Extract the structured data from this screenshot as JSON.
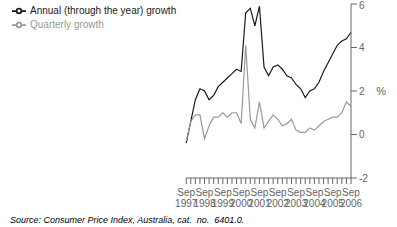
{
  "chart_data": {
    "type": "line",
    "ylabel": "%",
    "source": "Source: Consumer Price Index, Australia, cat.  no.  6401.0.",
    "categories": [
      "Sep\n1997",
      null,
      null,
      null,
      "Sep\n1998",
      null,
      null,
      null,
      "Sep\n1999",
      null,
      null,
      null,
      "Sep\n2000",
      null,
      null,
      null,
      "Sep\n2001",
      null,
      null,
      null,
      "Sep\n2002",
      null,
      null,
      null,
      "Sep\n2003",
      null,
      null,
      null,
      "Sep\n2004",
      null,
      null,
      null,
      "Sep\n2005",
      null,
      null,
      null,
      "Sep\n2006"
    ],
    "series": [
      {
        "name": "Annual (through the year) growth",
        "color": "#1a1a1a",
        "values": [
          -0.4,
          0.6,
          1.6,
          2.1,
          2.0,
          1.6,
          1.8,
          2.2,
          2.4,
          2.6,
          2.8,
          3.0,
          2.9,
          5.6,
          5.8,
          5.0,
          5.9,
          3.1,
          2.7,
          3.1,
          3.2,
          3.0,
          2.7,
          2.6,
          2.3,
          2.1,
          1.7,
          2.0,
          2.1,
          2.4,
          2.9,
          3.3,
          3.7,
          4.1,
          4.3,
          4.4,
          4.7
        ]
      },
      {
        "name": "Quarterly growth",
        "color": "#999999",
        "values": [
          -0.3,
          0.6,
          0.9,
          0.9,
          -0.2,
          0.4,
          0.8,
          0.8,
          1.0,
          0.8,
          1.0,
          1.0,
          0.5,
          4.1,
          0.7,
          0.3,
          1.5,
          0.3,
          0.6,
          0.9,
          0.7,
          0.4,
          0.5,
          0.7,
          0.2,
          0.1,
          0.1,
          0.3,
          0.2,
          0.4,
          0.6,
          0.7,
          0.8,
          0.8,
          1.0,
          1.5,
          1.3
        ]
      }
    ],
    "ylim": [
      -2,
      6
    ],
    "yticks": [
      -2,
      0,
      2,
      4,
      6
    ],
    "legend": "upper left"
  }
}
